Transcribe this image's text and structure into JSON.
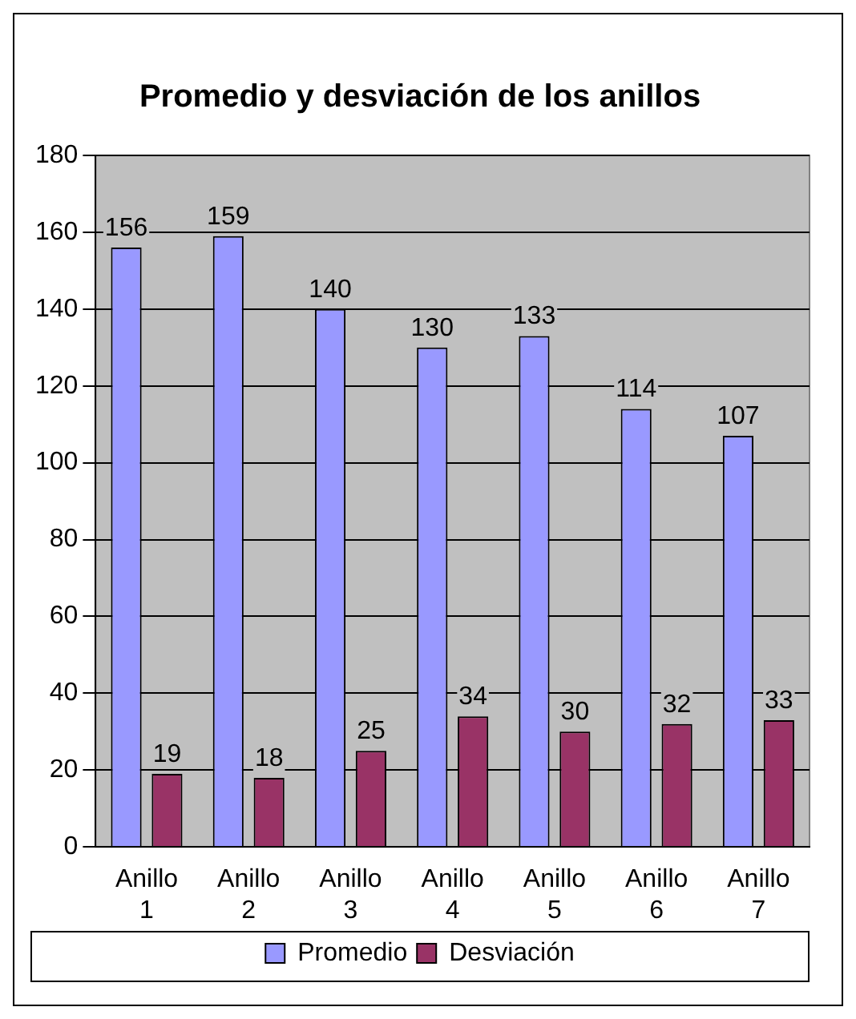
{
  "chart_data": {
    "type": "bar",
    "title": "Promedio y desviación de los anillos",
    "categories": [
      "Anillo 1",
      "Anillo 2",
      "Anillo 3",
      "Anillo 4",
      "Anillo 5",
      "Anillo 6",
      "Anillo 7"
    ],
    "series": [
      {
        "name": "Promedio",
        "color": "#9999ff",
        "values": [
          156,
          159,
          140,
          130,
          133,
          114,
          107
        ]
      },
      {
        "name": "Desviación",
        "color": "#993366",
        "values": [
          19,
          18,
          25,
          34,
          30,
          32,
          33
        ]
      }
    ],
    "ylim": [
      0,
      180
    ],
    "yticks": [
      0,
      20,
      40,
      60,
      80,
      100,
      120,
      140,
      160,
      180
    ],
    "grid": "y",
    "legend": "bottom",
    "data_labels": true
  }
}
